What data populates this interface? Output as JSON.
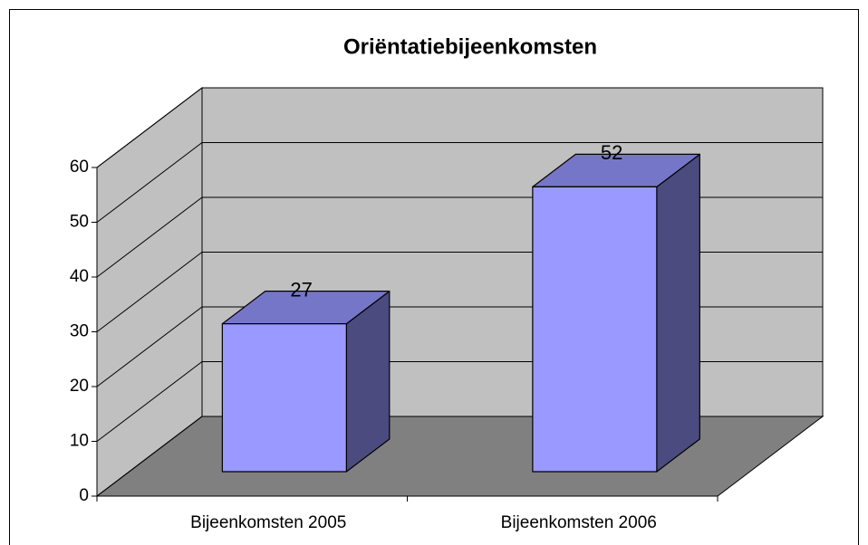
{
  "chart_data": {
    "type": "bar3d",
    "title": "Oriëntatiebijeenkomsten",
    "categories": [
      "Bijeenkomsten 2005",
      "Bijeenkomsten 2006"
    ],
    "values": [
      27,
      52
    ],
    "color": "#9999ff",
    "ylim": [
      0,
      60
    ],
    "yticks": [
      0,
      10,
      20,
      30,
      40,
      50,
      60
    ],
    "grid": true
  }
}
